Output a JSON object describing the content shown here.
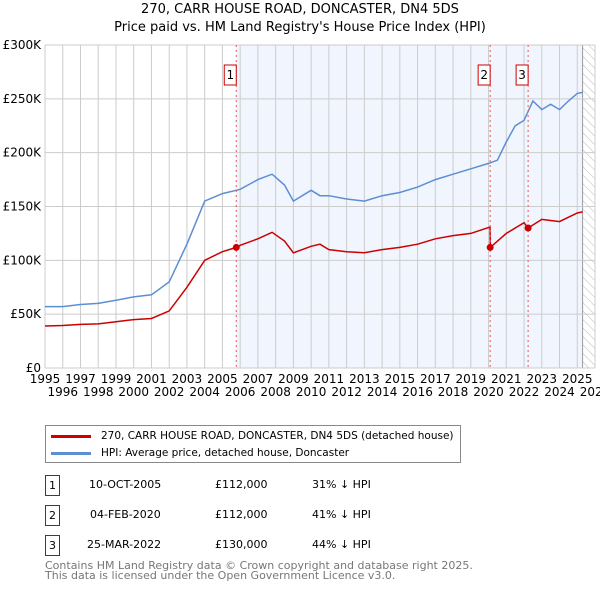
{
  "chart_data": {
    "type": "line",
    "title": "270, CARR HOUSE ROAD, DONCASTER, DN4 5DS",
    "subtitle": "Price paid vs. HM Land Registry's House Price Index (HPI)",
    "xlim": [
      1995,
      2026
    ],
    "ylim": [
      0,
      300000
    ],
    "yticks": [
      {
        "v": 0,
        "label": "£0"
      },
      {
        "v": 50000,
        "label": "£50K"
      },
      {
        "v": 100000,
        "label": "£100K"
      },
      {
        "v": 150000,
        "label": "£150K"
      },
      {
        "v": 200000,
        "label": "£200K"
      },
      {
        "v": 250000,
        "label": "£250K"
      },
      {
        "v": 300000,
        "label": "£300K"
      }
    ],
    "xticks": [
      "1995",
      "1996",
      "1997",
      "1998",
      "1999",
      "2000",
      "2001",
      "2002",
      "2003",
      "2004",
      "2005",
      "2006",
      "2007",
      "2008",
      "2009",
      "2010",
      "2011",
      "2012",
      "2013",
      "2014",
      "2015",
      "2016",
      "2017",
      "2018",
      "2019",
      "2020",
      "2021",
      "2022",
      "2023",
      "2024",
      "2025",
      "2026"
    ],
    "shaded_from": 2005.78,
    "hatched_from": 2025.3,
    "series": [
      {
        "name": "270, CARR HOUSE ROAD, DONCASTER, DN4 5DS (detached house)",
        "color": "#cc0000",
        "x": [
          1995,
          1996,
          1997,
          1998,
          1999,
          2000,
          2001,
          2002,
          2003,
          2004,
          2005,
          2005.78,
          2006,
          2007,
          2007.8,
          2008.5,
          2009,
          2010,
          2010.5,
          2011,
          2012,
          2013,
          2014,
          2015,
          2016,
          2017,
          2018,
          2019,
          2020.08,
          2020.1,
          2021,
          2022,
          2022.23,
          2023,
          2023.5,
          2024,
          2025,
          2025.3
        ],
        "y": [
          39000,
          39500,
          40500,
          41000,
          43000,
          45000,
          46000,
          53000,
          75000,
          100000,
          108000,
          112000,
          114000,
          120000,
          126000,
          118000,
          107000,
          113000,
          115000,
          110000,
          108000,
          107000,
          110000,
          112000,
          115000,
          120000,
          123000,
          125000,
          131000,
          112000,
          125000,
          135000,
          130000,
          138000,
          137000,
          136000,
          144000,
          145000
        ]
      },
      {
        "name": "HPI: Average price, detached house, Doncaster",
        "color": "#5b8fd4",
        "x": [
          1995,
          1996,
          1997,
          1998,
          1999,
          2000,
          2001,
          2002,
          2003,
          2004,
          2005,
          2006,
          2007,
          2007.8,
          2008.5,
          2009,
          2010,
          2010.5,
          2011,
          2012,
          2013,
          2014,
          2015,
          2016,
          2017,
          2018,
          2019,
          2020,
          2020.5,
          2021,
          2021.5,
          2022,
          2022.5,
          2023,
          2023.5,
          2024,
          2024.5,
          2025,
          2025.3
        ],
        "y": [
          57000,
          57000,
          59000,
          60000,
          63000,
          66000,
          68000,
          80000,
          115000,
          155000,
          162000,
          166000,
          175000,
          180000,
          170000,
          155000,
          165000,
          160000,
          160000,
          157000,
          155000,
          160000,
          163000,
          168000,
          175000,
          180000,
          185000,
          190000,
          193000,
          210000,
          225000,
          230000,
          248000,
          240000,
          245000,
          240000,
          248000,
          255000,
          256000
        ]
      }
    ],
    "sales": [
      {
        "n": "1",
        "x": 2005.78,
        "y": 112000
      },
      {
        "n": "2",
        "x": 2020.09,
        "y": 112000
      },
      {
        "n": "3",
        "x": 2022.23,
        "y": 130000
      }
    ]
  },
  "legend": {
    "red": "270, CARR HOUSE ROAD, DONCASTER, DN4 5DS (detached house)",
    "blue": "HPI: Average price, detached house, Doncaster"
  },
  "table": [
    {
      "n": "1",
      "date": "10-OCT-2005",
      "price": "£112,000",
      "hpi": "31% ↓ HPI"
    },
    {
      "n": "2",
      "date": "04-FEB-2020",
      "price": "£112,000",
      "hpi": "41% ↓ HPI"
    },
    {
      "n": "3",
      "date": "25-MAR-2022",
      "price": "£130,000",
      "hpi": "44% ↓ HPI"
    }
  ],
  "footer": {
    "line1": "Contains HM Land Registry data © Crown copyright and database right 2025.",
    "line2": "This data is licensed under the Open Government Licence v3.0."
  }
}
